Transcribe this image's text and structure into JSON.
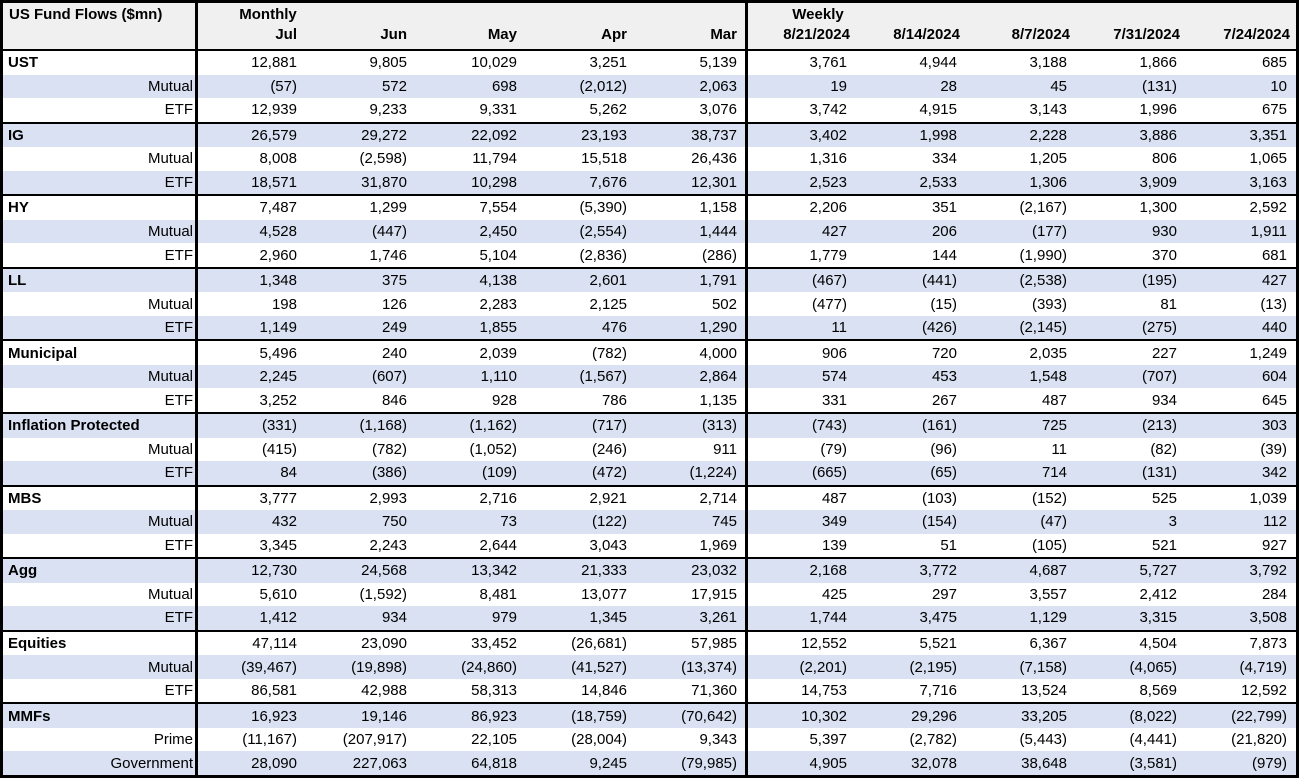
{
  "title": "US Fund Flows ($mn)",
  "header": {
    "monthly_label": "Monthly",
    "weekly_label": "Weekly",
    "monthly_columns": [
      "Jul",
      "Jun",
      "May",
      "Apr",
      "Mar"
    ],
    "weekly_columns": [
      "8/21/2024",
      "8/14/2024",
      "8/7/2024",
      "7/31/2024",
      "7/24/2024"
    ]
  },
  "colors": {
    "stripe_row_bg": "#d9e1f2",
    "header_bg": "#f0f0f0",
    "border": "#000000",
    "text": "#000000"
  },
  "groups": [
    {
      "rows": [
        {
          "label": "UST",
          "category": true,
          "monthly": [
            "12,881",
            "9,805",
            "10,029",
            "3,251",
            "5,139"
          ],
          "weekly": [
            "3,761",
            "4,944",
            "3,188",
            "1,866",
            "685"
          ]
        },
        {
          "label": "Mutual",
          "category": false,
          "monthly": [
            "(57)",
            "572",
            "698",
            "(2,012)",
            "2,063"
          ],
          "weekly": [
            "19",
            "28",
            "45",
            "(131)",
            "10"
          ]
        },
        {
          "label": "ETF",
          "category": false,
          "monthly": [
            "12,939",
            "9,233",
            "9,331",
            "5,262",
            "3,076"
          ],
          "weekly": [
            "3,742",
            "4,915",
            "3,143",
            "1,996",
            "675"
          ]
        }
      ]
    },
    {
      "rows": [
        {
          "label": "IG",
          "category": true,
          "monthly": [
            "26,579",
            "29,272",
            "22,092",
            "23,193",
            "38,737"
          ],
          "weekly": [
            "3,402",
            "1,998",
            "2,228",
            "3,886",
            "3,351"
          ]
        },
        {
          "label": "Mutual",
          "category": false,
          "monthly": [
            "8,008",
            "(2,598)",
            "11,794",
            "15,518",
            "26,436"
          ],
          "weekly": [
            "1,316",
            "334",
            "1,205",
            "806",
            "1,065"
          ]
        },
        {
          "label": "ETF",
          "category": false,
          "monthly": [
            "18,571",
            "31,870",
            "10,298",
            "7,676",
            "12,301"
          ],
          "weekly": [
            "2,523",
            "2,533",
            "1,306",
            "3,909",
            "3,163"
          ]
        }
      ]
    },
    {
      "rows": [
        {
          "label": "HY",
          "category": true,
          "monthly": [
            "7,487",
            "1,299",
            "7,554",
            "(5,390)",
            "1,158"
          ],
          "weekly": [
            "2,206",
            "351",
            "(2,167)",
            "1,300",
            "2,592"
          ]
        },
        {
          "label": "Mutual",
          "category": false,
          "monthly": [
            "4,528",
            "(447)",
            "2,450",
            "(2,554)",
            "1,444"
          ],
          "weekly": [
            "427",
            "206",
            "(177)",
            "930",
            "1,911"
          ]
        },
        {
          "label": "ETF",
          "category": false,
          "monthly": [
            "2,960",
            "1,746",
            "5,104",
            "(2,836)",
            "(286)"
          ],
          "weekly": [
            "1,779",
            "144",
            "(1,990)",
            "370",
            "681"
          ]
        }
      ]
    },
    {
      "rows": [
        {
          "label": "LL",
          "category": true,
          "monthly": [
            "1,348",
            "375",
            "4,138",
            "2,601",
            "1,791"
          ],
          "weekly": [
            "(467)",
            "(441)",
            "(2,538)",
            "(195)",
            "427"
          ]
        },
        {
          "label": "Mutual",
          "category": false,
          "monthly": [
            "198",
            "126",
            "2,283",
            "2,125",
            "502"
          ],
          "weekly": [
            "(477)",
            "(15)",
            "(393)",
            "81",
            "(13)"
          ]
        },
        {
          "label": "ETF",
          "category": false,
          "monthly": [
            "1,149",
            "249",
            "1,855",
            "476",
            "1,290"
          ],
          "weekly": [
            "11",
            "(426)",
            "(2,145)",
            "(275)",
            "440"
          ]
        }
      ]
    },
    {
      "rows": [
        {
          "label": "Municipal",
          "category": true,
          "monthly": [
            "5,496",
            "240",
            "2,039",
            "(782)",
            "4,000"
          ],
          "weekly": [
            "906",
            "720",
            "2,035",
            "227",
            "1,249"
          ]
        },
        {
          "label": "Mutual",
          "category": false,
          "monthly": [
            "2,245",
            "(607)",
            "1,110",
            "(1,567)",
            "2,864"
          ],
          "weekly": [
            "574",
            "453",
            "1,548",
            "(707)",
            "604"
          ]
        },
        {
          "label": "ETF",
          "category": false,
          "monthly": [
            "3,252",
            "846",
            "928",
            "786",
            "1,135"
          ],
          "weekly": [
            "331",
            "267",
            "487",
            "934",
            "645"
          ]
        }
      ]
    },
    {
      "rows": [
        {
          "label": "Inflation Protected",
          "category": true,
          "monthly": [
            "(331)",
            "(1,168)",
            "(1,162)",
            "(717)",
            "(313)"
          ],
          "weekly": [
            "(743)",
            "(161)",
            "725",
            "(213)",
            "303"
          ]
        },
        {
          "label": "Mutual",
          "category": false,
          "monthly": [
            "(415)",
            "(782)",
            "(1,052)",
            "(246)",
            "911"
          ],
          "weekly": [
            "(79)",
            "(96)",
            "11",
            "(82)",
            "(39)"
          ]
        },
        {
          "label": "ETF",
          "category": false,
          "monthly": [
            "84",
            "(386)",
            "(109)",
            "(472)",
            "(1,224)"
          ],
          "weekly": [
            "(665)",
            "(65)",
            "714",
            "(131)",
            "342"
          ]
        }
      ]
    },
    {
      "rows": [
        {
          "label": "MBS",
          "category": true,
          "monthly": [
            "3,777",
            "2,993",
            "2,716",
            "2,921",
            "2,714"
          ],
          "weekly": [
            "487",
            "(103)",
            "(152)",
            "525",
            "1,039"
          ]
        },
        {
          "label": "Mutual",
          "category": false,
          "monthly": [
            "432",
            "750",
            "73",
            "(122)",
            "745"
          ],
          "weekly": [
            "349",
            "(154)",
            "(47)",
            "3",
            "112"
          ]
        },
        {
          "label": "ETF",
          "category": false,
          "monthly": [
            "3,345",
            "2,243",
            "2,644",
            "3,043",
            "1,969"
          ],
          "weekly": [
            "139",
            "51",
            "(105)",
            "521",
            "927"
          ]
        }
      ]
    },
    {
      "rows": [
        {
          "label": "Agg",
          "category": true,
          "monthly": [
            "12,730",
            "24,568",
            "13,342",
            "21,333",
            "23,032"
          ],
          "weekly": [
            "2,168",
            "3,772",
            "4,687",
            "5,727",
            "3,792"
          ]
        },
        {
          "label": "Mutual",
          "category": false,
          "monthly": [
            "5,610",
            "(1,592)",
            "8,481",
            "13,077",
            "17,915"
          ],
          "weekly": [
            "425",
            "297",
            "3,557",
            "2,412",
            "284"
          ]
        },
        {
          "label": "ETF",
          "category": false,
          "monthly": [
            "1,412",
            "934",
            "979",
            "1,345",
            "3,261"
          ],
          "weekly": [
            "1,744",
            "3,475",
            "1,129",
            "3,315",
            "3,508"
          ]
        }
      ]
    },
    {
      "rows": [
        {
          "label": "Equities",
          "category": true,
          "monthly": [
            "47,114",
            "23,090",
            "33,452",
            "(26,681)",
            "57,985"
          ],
          "weekly": [
            "12,552",
            "5,521",
            "6,367",
            "4,504",
            "7,873"
          ]
        },
        {
          "label": "Mutual",
          "category": false,
          "monthly": [
            "(39,467)",
            "(19,898)",
            "(24,860)",
            "(41,527)",
            "(13,374)"
          ],
          "weekly": [
            "(2,201)",
            "(2,195)",
            "(7,158)",
            "(4,065)",
            "(4,719)"
          ]
        },
        {
          "label": "ETF",
          "category": false,
          "monthly": [
            "86,581",
            "42,988",
            "58,313",
            "14,846",
            "71,360"
          ],
          "weekly": [
            "14,753",
            "7,716",
            "13,524",
            "8,569",
            "12,592"
          ]
        }
      ]
    },
    {
      "rows": [
        {
          "label": "MMFs",
          "category": true,
          "monthly": [
            "16,923",
            "19,146",
            "86,923",
            "(18,759)",
            "(70,642)"
          ],
          "weekly": [
            "10,302",
            "29,296",
            "33,205",
            "(8,022)",
            "(22,799)"
          ]
        },
        {
          "label": "Prime",
          "category": false,
          "monthly": [
            "(11,167)",
            "(207,917)",
            "22,105",
            "(28,004)",
            "9,343"
          ],
          "weekly": [
            "5,397",
            "(2,782)",
            "(5,443)",
            "(4,441)",
            "(21,820)"
          ]
        },
        {
          "label": "Government",
          "category": false,
          "monthly": [
            "28,090",
            "227,063",
            "64,818",
            "9,245",
            "(79,985)"
          ],
          "weekly": [
            "4,905",
            "32,078",
            "38,648",
            "(3,581)",
            "(979)"
          ]
        }
      ]
    }
  ]
}
